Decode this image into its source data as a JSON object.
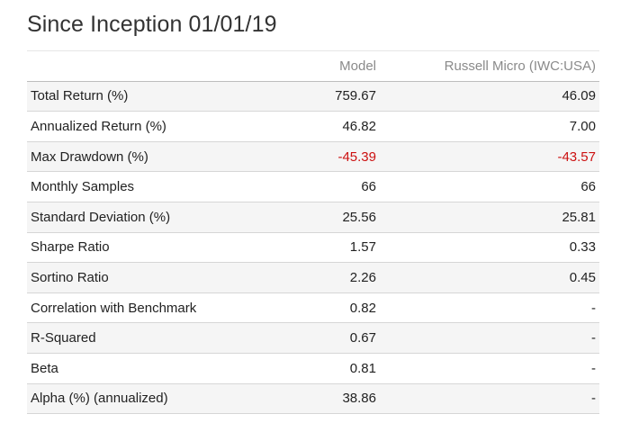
{
  "title": "Since Inception 01/01/19",
  "columns": [
    "",
    "Model",
    "Russell Micro (IWC:USA)"
  ],
  "colors": {
    "negative": "#cc1111",
    "header_text": "#8a8a8a"
  },
  "rows": [
    {
      "label": "Total Return (%)",
      "model": "759.67",
      "benchmark": "46.09"
    },
    {
      "label": "Annualized Return (%)",
      "model": "46.82",
      "benchmark": "7.00"
    },
    {
      "label": "Max Drawdown (%)",
      "model": "-45.39",
      "benchmark": "-43.57"
    },
    {
      "label": "Monthly Samples",
      "model": "66",
      "benchmark": "66"
    },
    {
      "label": "Standard Deviation (%)",
      "model": "25.56",
      "benchmark": "25.81"
    },
    {
      "label": "Sharpe Ratio",
      "model": "1.57",
      "benchmark": "0.33"
    },
    {
      "label": "Sortino Ratio",
      "model": "2.26",
      "benchmark": "0.45"
    },
    {
      "label": "Correlation with Benchmark",
      "model": "0.82",
      "benchmark": "-"
    },
    {
      "label": "R-Squared",
      "model": "0.67",
      "benchmark": "-"
    },
    {
      "label": "Beta",
      "model": "0.81",
      "benchmark": "-"
    },
    {
      "label": "Alpha (%) (annualized)",
      "model": "38.86",
      "benchmark": "-"
    }
  ]
}
